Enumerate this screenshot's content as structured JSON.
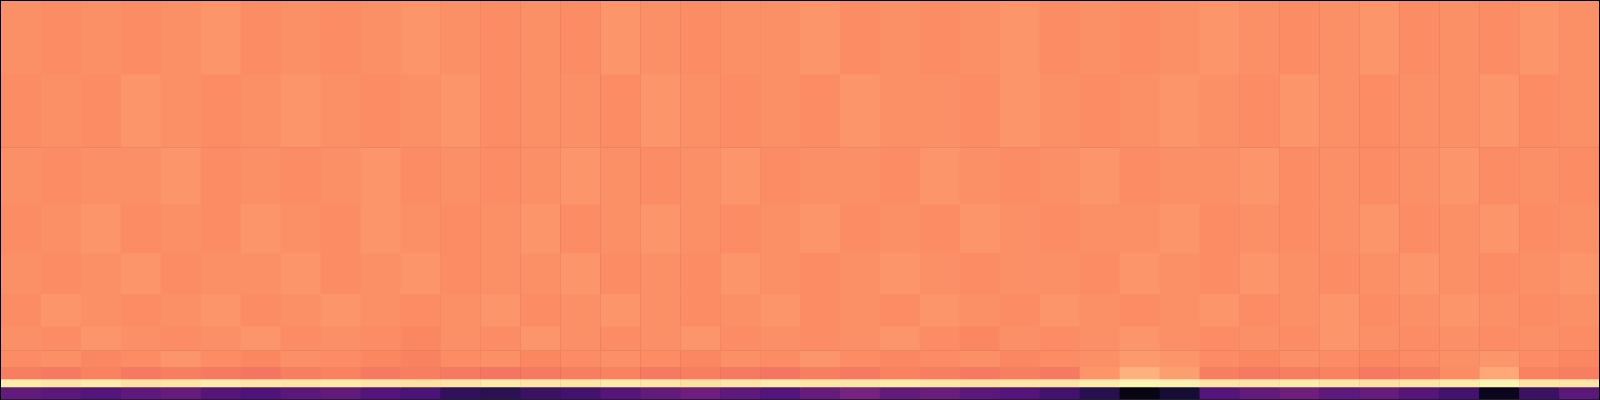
{
  "chart_data": {
    "type": "heatmap",
    "tick_labels": false,
    "grid": false,
    "xlim": [
      0,
      40
    ],
    "ylim": [
      0,
      49
    ],
    "x_bins": [
      0,
      1,
      2,
      3,
      4,
      5,
      6,
      7,
      8,
      9,
      10,
      11,
      12,
      13,
      14,
      15,
      16,
      17,
      18,
      19,
      20,
      21,
      22,
      23,
      24,
      25,
      26,
      27,
      28,
      29,
      30,
      31,
      32,
      33,
      34,
      35,
      36,
      37,
      38,
      39,
      40
    ],
    "y_bins": [
      0,
      1.5,
      2.5,
      4,
      6,
      9,
      13,
      18,
      24,
      31,
      40,
      49
    ],
    "color_range": [
      0,
      1
    ],
    "cells": [
      [
        0.3,
        0.28,
        0.26,
        0.29,
        0.31,
        0.27,
        0.25,
        0.28,
        0.3,
        0.26,
        0.24,
        0.18,
        0.16,
        0.2,
        0.22,
        0.27,
        0.3,
        0.33,
        0.29,
        0.26,
        0.31,
        0.35,
        0.3,
        0.32,
        0.28,
        0.26,
        0.22,
        0.15,
        0.03,
        0.1,
        0.26,
        0.3,
        0.33,
        0.29,
        0.31,
        0.27,
        0.22,
        0.05,
        0.2,
        0.28
      ],
      [
        0.96,
        0.95,
        0.96,
        0.94,
        0.95,
        0.96,
        0.95,
        0.95,
        0.96,
        0.95,
        0.94,
        0.95,
        0.96,
        0.95,
        0.95,
        0.96,
        0.95,
        0.94,
        0.95,
        0.96,
        0.95,
        0.95,
        0.96,
        0.95,
        0.94,
        0.95,
        0.95,
        0.96,
        0.98,
        0.97,
        0.95,
        0.95,
        0.96,
        0.95,
        0.94,
        0.95,
        0.96,
        0.98,
        0.95,
        0.95
      ],
      [
        0.73,
        0.72,
        0.74,
        0.72,
        0.73,
        0.72,
        0.71,
        0.73,
        0.74,
        0.72,
        0.73,
        0.72,
        0.71,
        0.72,
        0.73,
        0.74,
        0.72,
        0.73,
        0.72,
        0.71,
        0.73,
        0.72,
        0.74,
        0.73,
        0.72,
        0.73,
        0.72,
        0.78,
        0.84,
        0.8,
        0.73,
        0.72,
        0.73,
        0.74,
        0.72,
        0.73,
        0.76,
        0.82,
        0.74,
        0.73
      ],
      [
        0.76,
        0.77,
        0.75,
        0.76,
        0.78,
        0.76,
        0.75,
        0.77,
        0.76,
        0.75,
        0.74,
        0.76,
        0.77,
        0.75,
        0.76,
        0.77,
        0.76,
        0.75,
        0.77,
        0.76,
        0.78,
        0.76,
        0.75,
        0.76,
        0.77,
        0.75,
        0.76,
        0.77,
        0.79,
        0.78,
        0.76,
        0.75,
        0.77,
        0.76,
        0.75,
        0.76,
        0.77,
        0.78,
        0.76,
        0.75
      ],
      [
        0.77,
        0.76,
        0.78,
        0.77,
        0.76,
        0.77,
        0.78,
        0.76,
        0.77,
        0.76,
        0.75,
        0.77,
        0.76,
        0.78,
        0.77,
        0.76,
        0.77,
        0.78,
        0.76,
        0.77,
        0.76,
        0.77,
        0.78,
        0.76,
        0.75,
        0.77,
        0.76,
        0.77,
        0.78,
        0.77,
        0.76,
        0.77,
        0.76,
        0.78,
        0.77,
        0.76,
        0.77,
        0.76,
        0.77,
        0.76
      ],
      [
        0.76,
        0.78,
        0.77,
        0.76,
        0.77,
        0.78,
        0.76,
        0.77,
        0.78,
        0.77,
        0.76,
        0.77,
        0.78,
        0.76,
        0.77,
        0.78,
        0.77,
        0.76,
        0.77,
        0.78,
        0.76,
        0.77,
        0.76,
        0.78,
        0.77,
        0.76,
        0.78,
        0.77,
        0.76,
        0.77,
        0.78,
        0.76,
        0.77,
        0.78,
        0.76,
        0.77,
        0.78,
        0.77,
        0.76,
        0.77
      ],
      [
        0.77,
        0.76,
        0.77,
        0.78,
        0.76,
        0.77,
        0.77,
        0.78,
        0.76,
        0.77,
        0.78,
        0.76,
        0.77,
        0.77,
        0.78,
        0.76,
        0.77,
        0.76,
        0.78,
        0.77,
        0.76,
        0.77,
        0.78,
        0.77,
        0.76,
        0.77,
        0.77,
        0.76,
        0.78,
        0.77,
        0.76,
        0.78,
        0.77,
        0.76,
        0.77,
        0.78,
        0.77,
        0.76,
        0.77,
        0.78
      ],
      [
        0.76,
        0.77,
        0.78,
        0.76,
        0.77,
        0.76,
        0.78,
        0.77,
        0.76,
        0.78,
        0.77,
        0.76,
        0.77,
        0.78,
        0.76,
        0.77,
        0.78,
        0.77,
        0.76,
        0.77,
        0.78,
        0.76,
        0.77,
        0.76,
        0.78,
        0.77,
        0.76,
        0.77,
        0.77,
        0.78,
        0.76,
        0.77,
        0.76,
        0.77,
        0.78,
        0.76,
        0.77,
        0.78,
        0.76,
        0.77
      ],
      [
        0.77,
        0.76,
        0.77,
        0.77,
        0.78,
        0.76,
        0.77,
        0.76,
        0.77,
        0.78,
        0.76,
        0.77,
        0.76,
        0.77,
        0.78,
        0.77,
        0.76,
        0.77,
        0.78,
        0.76,
        0.77,
        0.77,
        0.76,
        0.78,
        0.77,
        0.76,
        0.77,
        0.78,
        0.76,
        0.77,
        0.77,
        0.78,
        0.76,
        0.77,
        0.76,
        0.77,
        0.78,
        0.76,
        0.77,
        0.76
      ],
      [
        0.76,
        0.77,
        0.76,
        0.78,
        0.77,
        0.76,
        0.77,
        0.78,
        0.77,
        0.76,
        0.77,
        0.78,
        0.76,
        0.77,
        0.77,
        0.76,
        0.78,
        0.77,
        0.76,
        0.77,
        0.76,
        0.78,
        0.77,
        0.77,
        0.76,
        0.78,
        0.77,
        0.76,
        0.77,
        0.78,
        0.77,
        0.76,
        0.78,
        0.77,
        0.76,
        0.77,
        0.77,
        0.78,
        0.76,
        0.77
      ],
      [
        0.77,
        0.76,
        0.77,
        0.76,
        0.77,
        0.78,
        0.76,
        0.77,
        0.76,
        0.77,
        0.78,
        0.77,
        0.76,
        0.77,
        0.76,
        0.78,
        0.77,
        0.76,
        0.77,
        0.77,
        0.78,
        0.76,
        0.77,
        0.76,
        0.77,
        0.78,
        0.76,
        0.77,
        0.76,
        0.77,
        0.78,
        0.77,
        0.76,
        0.77,
        0.78,
        0.76,
        0.77,
        0.76,
        0.78,
        0.77
      ]
    ]
  }
}
